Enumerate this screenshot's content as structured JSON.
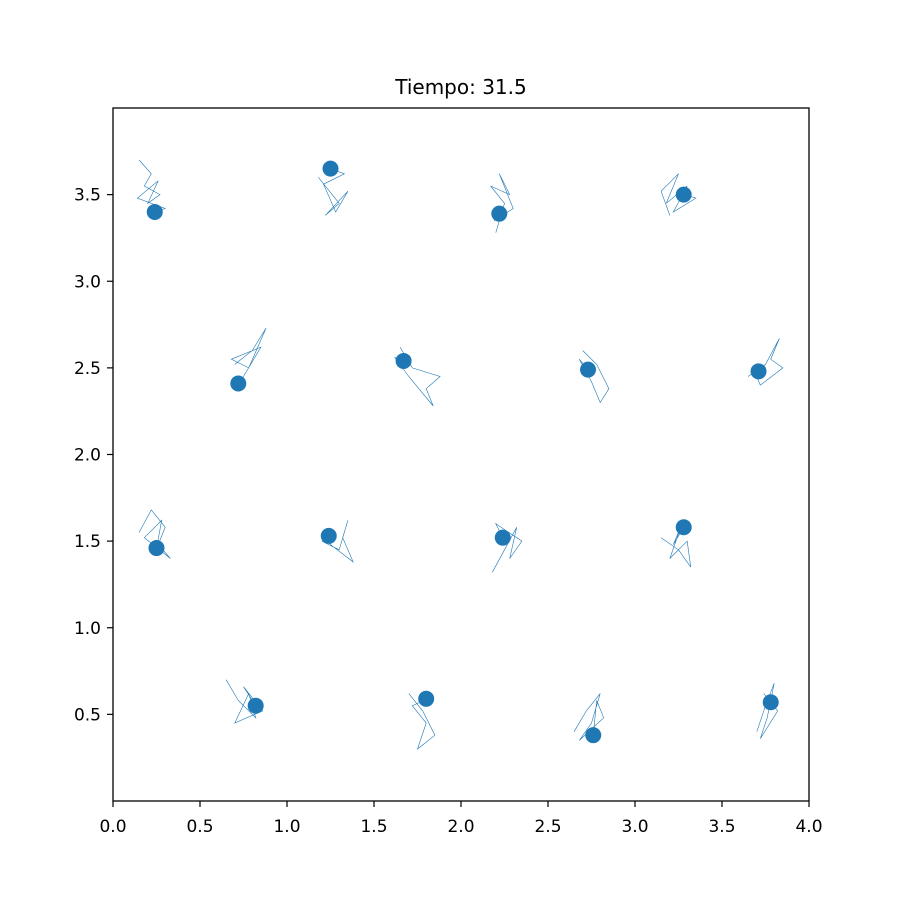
{
  "chart_data": {
    "type": "scatter",
    "title": "Tiempo: 31.5",
    "xlabel": "",
    "ylabel": "",
    "xlim": [
      0.0,
      4.0
    ],
    "ylim": [
      0.0,
      4.0
    ],
    "x_ticks": [
      "0.0",
      "0.5",
      "1.0",
      "1.5",
      "2.0",
      "2.5",
      "3.0",
      "3.5",
      "4.0"
    ],
    "y_ticks": [
      "0.5",
      "1.0",
      "1.5",
      "2.0",
      "2.5",
      "3.0",
      "3.5"
    ],
    "grid": false,
    "color": "#1f77b4",
    "points": [
      {
        "x": 0.24,
        "y": 3.4
      },
      {
        "x": 1.25,
        "y": 3.65
      },
      {
        "x": 2.22,
        "y": 3.39
      },
      {
        "x": 3.28,
        "y": 3.5
      },
      {
        "x": 0.72,
        "y": 2.41
      },
      {
        "x": 1.67,
        "y": 2.54
      },
      {
        "x": 2.73,
        "y": 2.49
      },
      {
        "x": 3.71,
        "y": 2.48
      },
      {
        "x": 0.25,
        "y": 1.46
      },
      {
        "x": 1.24,
        "y": 1.53
      },
      {
        "x": 2.24,
        "y": 1.52
      },
      {
        "x": 3.28,
        "y": 1.58
      },
      {
        "x": 0.82,
        "y": 0.55
      },
      {
        "x": 1.8,
        "y": 0.59
      },
      {
        "x": 2.76,
        "y": 0.38
      },
      {
        "x": 3.78,
        "y": 0.57
      }
    ],
    "trajectories": [
      [
        [
          0.15,
          3.7
        ],
        [
          0.22,
          3.62
        ],
        [
          0.18,
          3.55
        ],
        [
          0.27,
          3.5
        ],
        [
          0.2,
          3.45
        ],
        [
          0.26,
          3.58
        ],
        [
          0.14,
          3.48
        ],
        [
          0.3,
          3.42
        ],
        [
          0.24,
          3.4
        ]
      ],
      [
        [
          1.18,
          3.6
        ],
        [
          1.3,
          3.45
        ],
        [
          1.22,
          3.38
        ],
        [
          1.35,
          3.52
        ],
        [
          1.28,
          3.4
        ],
        [
          1.21,
          3.56
        ],
        [
          1.33,
          3.62
        ],
        [
          1.25,
          3.65
        ]
      ],
      [
        [
          2.2,
          3.28
        ],
        [
          2.25,
          3.45
        ],
        [
          2.17,
          3.55
        ],
        [
          2.28,
          3.5
        ],
        [
          2.22,
          3.62
        ],
        [
          2.3,
          3.42
        ],
        [
          2.19,
          3.35
        ],
        [
          2.22,
          3.39
        ]
      ],
      [
        [
          3.2,
          3.38
        ],
        [
          3.15,
          3.52
        ],
        [
          3.25,
          3.62
        ],
        [
          3.18,
          3.45
        ],
        [
          3.3,
          3.55
        ],
        [
          3.22,
          3.4
        ],
        [
          3.35,
          3.48
        ],
        [
          3.28,
          3.5
        ]
      ],
      [
        [
          0.7,
          2.52
        ],
        [
          0.8,
          2.6
        ],
        [
          0.88,
          2.73
        ],
        [
          0.78,
          2.5
        ],
        [
          0.68,
          2.55
        ],
        [
          0.85,
          2.62
        ],
        [
          0.75,
          2.45
        ],
        [
          0.72,
          2.41
        ]
      ],
      [
        [
          1.65,
          2.62
        ],
        [
          1.72,
          2.5
        ],
        [
          1.88,
          2.45
        ],
        [
          1.8,
          2.38
        ],
        [
          1.84,
          2.28
        ],
        [
          1.7,
          2.45
        ],
        [
          1.62,
          2.56
        ],
        [
          1.67,
          2.54
        ]
      ],
      [
        [
          2.7,
          2.6
        ],
        [
          2.78,
          2.52
        ],
        [
          2.85,
          2.38
        ],
        [
          2.8,
          2.3
        ],
        [
          2.75,
          2.42
        ],
        [
          2.68,
          2.55
        ],
        [
          2.73,
          2.49
        ]
      ],
      [
        [
          3.65,
          2.45
        ],
        [
          3.75,
          2.52
        ],
        [
          3.83,
          2.67
        ],
        [
          3.78,
          2.55
        ],
        [
          3.85,
          2.5
        ],
        [
          3.72,
          2.4
        ],
        [
          3.68,
          2.5
        ],
        [
          3.71,
          2.48
        ]
      ],
      [
        [
          0.15,
          1.55
        ],
        [
          0.22,
          1.68
        ],
        [
          0.3,
          1.58
        ],
        [
          0.26,
          1.48
        ],
        [
          0.33,
          1.4
        ],
        [
          0.18,
          1.52
        ],
        [
          0.28,
          1.62
        ],
        [
          0.25,
          1.46
        ]
      ],
      [
        [
          1.2,
          1.5
        ],
        [
          1.3,
          1.45
        ],
        [
          1.35,
          1.62
        ],
        [
          1.32,
          1.52
        ],
        [
          1.38,
          1.38
        ],
        [
          1.25,
          1.48
        ],
        [
          1.22,
          1.55
        ],
        [
          1.24,
          1.53
        ]
      ],
      [
        [
          2.18,
          1.32
        ],
        [
          2.25,
          1.45
        ],
        [
          2.32,
          1.58
        ],
        [
          2.28,
          1.4
        ],
        [
          2.35,
          1.5
        ],
        [
          2.2,
          1.6
        ],
        [
          2.26,
          1.48
        ],
        [
          2.24,
          1.52
        ]
      ],
      [
        [
          3.15,
          1.52
        ],
        [
          3.25,
          1.45
        ],
        [
          3.32,
          1.35
        ],
        [
          3.3,
          1.5
        ],
        [
          3.2,
          1.4
        ],
        [
          3.27,
          1.6
        ],
        [
          3.22,
          1.48
        ],
        [
          3.28,
          1.58
        ]
      ],
      [
        [
          0.65,
          0.7
        ],
        [
          0.72,
          0.58
        ],
        [
          0.82,
          0.48
        ],
        [
          0.78,
          0.62
        ],
        [
          0.7,
          0.45
        ],
        [
          0.86,
          0.52
        ],
        [
          0.75,
          0.66
        ],
        [
          0.82,
          0.55
        ]
      ],
      [
        [
          1.7,
          0.62
        ],
        [
          1.78,
          0.52
        ],
        [
          1.85,
          0.38
        ],
        [
          1.75,
          0.3
        ],
        [
          1.8,
          0.45
        ],
        [
          1.72,
          0.55
        ],
        [
          1.83,
          0.6
        ],
        [
          1.8,
          0.59
        ]
      ],
      [
        [
          2.65,
          0.4
        ],
        [
          2.72,
          0.52
        ],
        [
          2.8,
          0.62
        ],
        [
          2.75,
          0.45
        ],
        [
          2.68,
          0.35
        ],
        [
          2.82,
          0.48
        ],
        [
          2.78,
          0.58
        ],
        [
          2.76,
          0.38
        ]
      ],
      [
        [
          3.7,
          0.4
        ],
        [
          3.75,
          0.55
        ],
        [
          3.8,
          0.68
        ],
        [
          3.76,
          0.48
        ],
        [
          3.72,
          0.36
        ],
        [
          3.82,
          0.52
        ],
        [
          3.74,
          0.62
        ],
        [
          3.78,
          0.57
        ]
      ]
    ]
  }
}
